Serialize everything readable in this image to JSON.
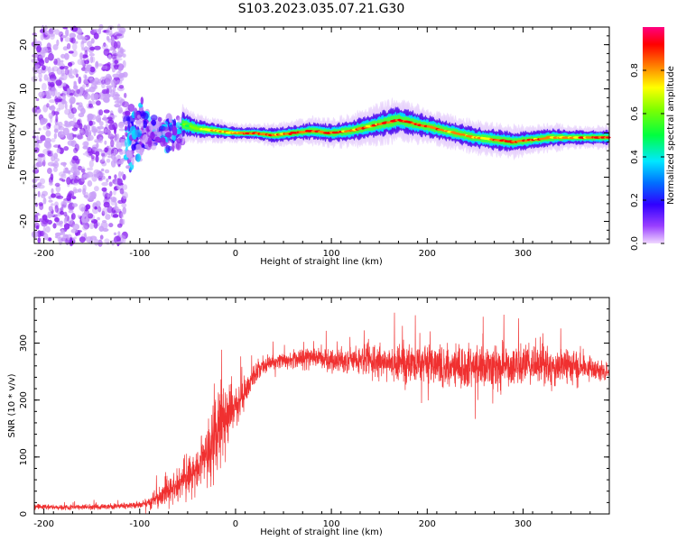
{
  "title": "S103.2023.035.07.21.G30",
  "colors": {
    "snr_line": "#f03030",
    "colormap": [
      "#b0b0ff",
      "#8a00ff",
      "#2a00ff",
      "#0060ff",
      "#00e0ff",
      "#00ff60",
      "#80ff00",
      "#ffff00",
      "#ff8000",
      "#ff0000",
      "#ff0080"
    ]
  },
  "chart_data": [
    {
      "type": "heatmap",
      "title": "",
      "xlabel": "Height of straight line (km)",
      "ylabel": "Frequency (Hz)",
      "xlim": [
        -210,
        390
      ],
      "ylim": [
        -25,
        24
      ],
      "xticks": [
        -200,
        -100,
        0,
        100,
        200,
        300
      ],
      "xtick_labels": [
        "-200",
        "-100",
        "0",
        "100",
        "200",
        "300"
      ],
      "yticks": [
        -20,
        -10,
        0,
        10,
        20
      ],
      "ytick_labels": [
        "-20",
        "-10",
        "0",
        "10",
        "20"
      ],
      "colorbar": {
        "label": "Normalized spectral amplitude",
        "range": [
          0,
          1
        ],
        "ticks": [
          0.0,
          0.2,
          0.4,
          0.6,
          0.8
        ],
        "tick_labels": [
          "0.0",
          "0.2",
          "0.4",
          "0.6",
          "0.8"
        ]
      },
      "ridge": {
        "x": [
          -55,
          -40,
          -20,
          0,
          20,
          40,
          60,
          80,
          100,
          120,
          140,
          160,
          170,
          190,
          210,
          230,
          250,
          270,
          290,
          310,
          330,
          350,
          370,
          390
        ],
        "freq": [
          2,
          1,
          0.5,
          0,
          0,
          -0.5,
          0,
          0.5,
          0,
          0.5,
          1.5,
          2.5,
          3,
          2,
          1,
          0,
          -1,
          -1.5,
          -2,
          -1.5,
          -1,
          -1,
          -1,
          -1
        ],
        "amplitude": [
          0.6,
          0.65,
          0.8,
          0.8,
          0.9,
          0.85,
          0.9,
          0.9,
          0.9,
          0.85,
          0.85,
          0.9,
          0.95,
          0.9,
          0.85,
          0.8,
          0.8,
          0.85,
          0.9,
          0.85,
          0.8,
          0.85,
          0.85,
          0.9
        ],
        "spread_hz": [
          4,
          3,
          2.5,
          2,
          2,
          2.5,
          2.5,
          3,
          3,
          3.5,
          4,
          4.5,
          4.5,
          4,
          3.5,
          3.5,
          3.5,
          3.5,
          3.5,
          3,
          3,
          2.5,
          2.5,
          2.5
        ]
      },
      "noise_region_x": [
        -210,
        -115
      ],
      "transition_region_x": [
        -115,
        -55
      ]
    },
    {
      "type": "line",
      "title": "",
      "xlabel": "Height of straight line (km)",
      "ylabel": "SNR (10 * v/v)",
      "xlim": [
        -210,
        390
      ],
      "ylim": [
        0,
        380
      ],
      "xticks": [
        -200,
        -100,
        0,
        100,
        200,
        300
      ],
      "xtick_labels": [
        "-200",
        "-100",
        "0",
        "100",
        "200",
        "300"
      ],
      "yticks": [
        0,
        100,
        200,
        300
      ],
      "ytick_labels": [
        "0",
        "100",
        "200",
        "300"
      ],
      "series": [
        {
          "x": [
            -210,
            -150,
            -100,
            -90,
            -80,
            -60,
            -40,
            -30,
            -20,
            -15,
            -10,
            0,
            10,
            20,
            30,
            50,
            80,
            100,
            150,
            200,
            250,
            300,
            350,
            390
          ],
          "mean": [
            12,
            12,
            15,
            20,
            30,
            50,
            80,
            110,
            150,
            160,
            170,
            190,
            215,
            245,
            262,
            270,
            275,
            272,
            268,
            262,
            258,
            262,
            258,
            250
          ],
          "noise": [
            5,
            5,
            6,
            10,
            18,
            28,
            40,
            50,
            70,
            80,
            70,
            40,
            25,
            20,
            15,
            15,
            18,
            22,
            30,
            38,
            42,
            40,
            30,
            12
          ]
        }
      ]
    }
  ]
}
